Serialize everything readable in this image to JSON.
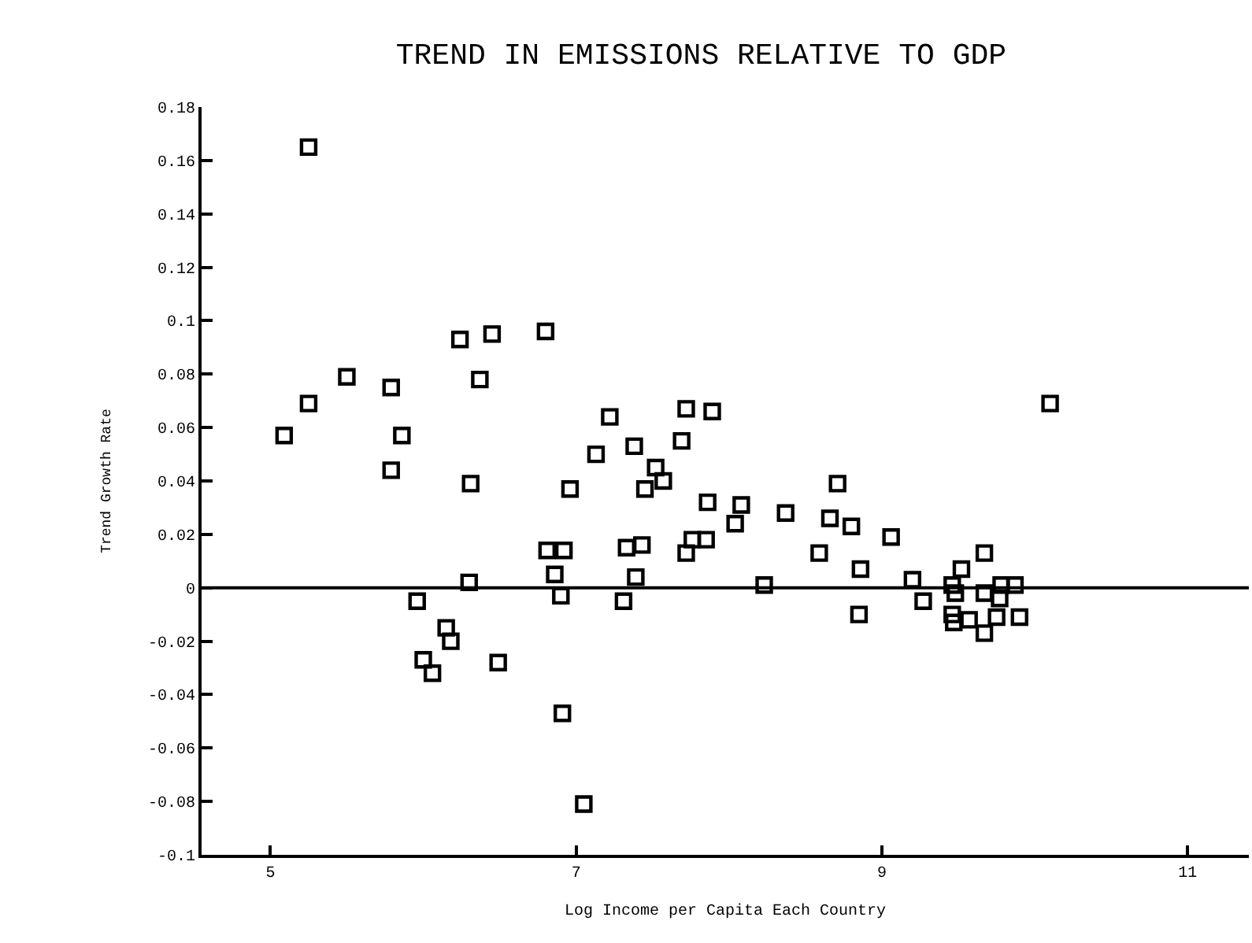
{
  "chart_data": {
    "type": "scatter",
    "title": "TREND IN EMISSIONS RELATIVE TO GDP",
    "xlabel": "Log Income per Capita Each Country",
    "ylabel": "Trend Growth Rate",
    "x": [
      5.25,
      5.09,
      5.25,
      5.5,
      5.79,
      5.86,
      5.79,
      6.24,
      6.45,
      6.37,
      6.31,
      6.8,
      6.3,
      5.96,
      6.15,
      6.18,
      6.0,
      6.06,
      6.49,
      6.91,
      7.22,
      7.13,
      6.96,
      6.81,
      6.92,
      6.86,
      6.9,
      7.38,
      7.52,
      7.57,
      7.45,
      7.33,
      7.43,
      7.39,
      7.31,
      7.72,
      7.89,
      7.69,
      7.86,
      7.76,
      7.85,
      7.72,
      7.05,
      8.08,
      8.04,
      8.37,
      8.71,
      8.66,
      8.8,
      9.06,
      8.59,
      8.86,
      8.85,
      8.23,
      9.2,
      9.27,
      9.67,
      9.52,
      9.46,
      9.48,
      9.67,
      9.77,
      9.78,
      9.87,
      9.46,
      9.47,
      9.57,
      9.75,
      9.9,
      9.67,
      10.1
    ],
    "values": [
      0.165,
      0.057,
      0.069,
      0.079,
      0.075,
      0.057,
      0.044,
      0.093,
      0.095,
      0.078,
      0.039,
      0.096,
      0.002,
      -0.005,
      -0.015,
      -0.02,
      -0.027,
      -0.032,
      -0.028,
      -0.047,
      0.064,
      0.05,
      0.037,
      0.014,
      0.014,
      0.005,
      -0.003,
      0.053,
      0.045,
      0.04,
      0.037,
      0.015,
      0.016,
      0.004,
      -0.005,
      0.067,
      0.066,
      0.055,
      0.032,
      0.018,
      0.018,
      0.013,
      -0.081,
      0.031,
      0.024,
      0.028,
      0.039,
      0.026,
      0.023,
      0.019,
      0.013,
      0.007,
      -0.01,
      0.001,
      0.003,
      -0.005,
      0.013,
      0.007,
      0.001,
      -0.002,
      -0.002,
      -0.004,
      0.001,
      0.001,
      -0.01,
      -0.013,
      -0.012,
      -0.011,
      -0.011,
      -0.017,
      0.069
    ],
    "color": "#000000",
    "marker": "square",
    "xlim": [
      4.55,
      11.4
    ],
    "xticks": [
      5,
      7,
      9,
      11
    ],
    "ylim": [
      -0.1,
      0.18
    ],
    "yticks": [
      -0.1,
      -0.08,
      -0.06,
      -0.04,
      -0.02,
      0,
      0.02,
      0.04,
      0.06,
      0.08,
      0.1,
      0.12,
      0.14,
      0.16,
      0.18
    ],
    "ref_lines": [
      {
        "axis": "y",
        "value": 0
      }
    ],
    "grid": false
  }
}
